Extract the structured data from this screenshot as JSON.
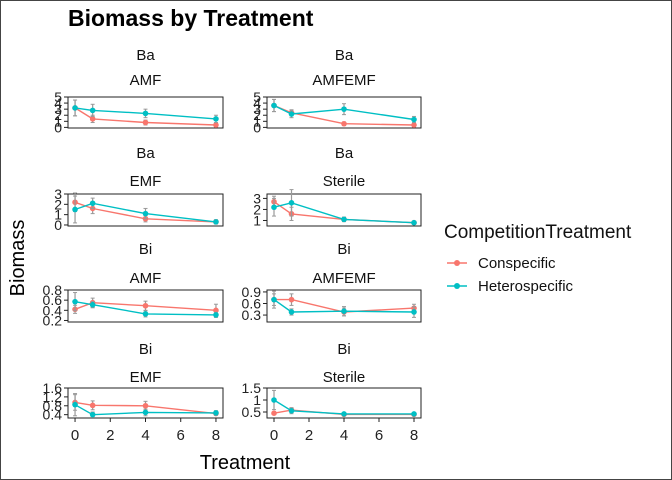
{
  "chart_data": {
    "type": "line",
    "title": "Biomass by Treatment",
    "xlabel": "Treatment",
    "ylabel": "Biomass",
    "x_ticks": [
      0,
      2,
      4,
      6,
      8
    ],
    "xlim": [
      -0.4,
      8.4
    ],
    "legend": {
      "title": "CompetitionTreatment",
      "placement": "right",
      "entries": [
        "Conspecific",
        "Heterospecific"
      ]
    },
    "colors": {
      "Conspecific": "#F8766D",
      "Heterospecific": "#00BFC4",
      "errorbar": "#999999"
    },
    "panels": [
      {
        "strip_top": "Ba",
        "strip_bottom": "AMF",
        "ylim": [
          -0.1,
          5.0
        ],
        "y_ticks": [
          0,
          1,
          2,
          3,
          4,
          5
        ],
        "series": [
          {
            "name": "Conspecific",
            "x": [
              0,
              1,
              4,
              8
            ],
            "y": [
              3.2,
              1.4,
              0.8,
              0.4
            ],
            "err": [
              1.3,
              0.6,
              0.4,
              0.3
            ]
          },
          {
            "name": "Heterospecific",
            "x": [
              0,
              1,
              4,
              8
            ],
            "y": [
              3.2,
              2.8,
              2.3,
              1.4
            ],
            "err": [
              1.3,
              1.0,
              0.7,
              0.6
            ]
          }
        ]
      },
      {
        "strip_top": "Ba",
        "strip_bottom": "AMFEMF",
        "ylim": [
          -0.1,
          5.0
        ],
        "y_ticks": [
          0,
          1,
          2,
          3,
          4,
          5
        ],
        "series": [
          {
            "name": "Conspecific",
            "x": [
              0,
              1,
              4,
              8
            ],
            "y": [
              3.6,
              2.4,
              0.6,
              0.4
            ],
            "err": [
              1.0,
              0.5,
              0.3,
              0.3
            ]
          },
          {
            "name": "Heterospecific",
            "x": [
              0,
              1,
              4,
              8
            ],
            "y": [
              3.6,
              2.2,
              3.0,
              1.3
            ],
            "err": [
              1.0,
              0.6,
              0.9,
              0.5
            ]
          }
        ]
      },
      {
        "strip_top": "Ba",
        "strip_bottom": "EMF",
        "ylim": [
          -0.1,
          3.0
        ],
        "y_ticks": [
          0,
          1,
          2,
          3
        ],
        "series": [
          {
            "name": "Conspecific",
            "x": [
              0,
              1,
              4,
              8
            ],
            "y": [
              2.2,
              1.6,
              0.6,
              0.3
            ],
            "err": [
              0.9,
              0.5,
              0.3,
              0.2
            ]
          },
          {
            "name": "Heterospecific",
            "x": [
              0,
              1,
              4,
              8
            ],
            "y": [
              1.5,
              2.1,
              1.1,
              0.3
            ],
            "err": [
              1.3,
              0.5,
              0.5,
              0.2
            ]
          }
        ]
      },
      {
        "strip_top": "Ba",
        "strip_bottom": "Sterile",
        "ylim": [
          0.5,
          3.4
        ],
        "y_ticks": [
          1,
          2,
          3
        ],
        "series": [
          {
            "name": "Conspecific",
            "x": [
              0,
              1,
              4,
              8
            ],
            "y": [
              2.7,
              1.6,
              1.1,
              0.8
            ],
            "err": [
              0.5,
              0.6,
              0.2,
              0.1
            ]
          },
          {
            "name": "Heterospecific",
            "x": [
              0,
              1,
              4,
              8
            ],
            "y": [
              2.2,
              2.6,
              1.1,
              0.8
            ],
            "err": [
              0.8,
              1.2,
              0.2,
              0.1
            ]
          }
        ]
      },
      {
        "strip_top": "Bi",
        "strip_bottom": "AMF",
        "ylim": [
          0.17,
          0.8
        ],
        "y_ticks": [
          0.2,
          0.4,
          0.6,
          0.8
        ],
        "series": [
          {
            "name": "Conspecific",
            "x": [
              0,
              1,
              4,
              8
            ],
            "y": [
              0.42,
              0.55,
              0.49,
              0.4
            ],
            "err": [
              0.08,
              0.09,
              0.09,
              0.12
            ]
          },
          {
            "name": "Heterospecific",
            "x": [
              0,
              1,
              4,
              8
            ],
            "y": [
              0.57,
              0.51,
              0.33,
              0.31
            ],
            "err": [
              0.18,
              0.06,
              0.06,
              0.05
            ]
          }
        ]
      },
      {
        "strip_top": "Bi",
        "strip_bottom": "AMFEMF",
        "ylim": [
          0.12,
          0.95
        ],
        "y_ticks": [
          0.3,
          0.6,
          0.9
        ],
        "series": [
          {
            "name": "Conspecific",
            "x": [
              0,
              1,
              4,
              8
            ],
            "y": [
              0.7,
              0.7,
              0.38,
              0.48
            ],
            "err": [
              0.15,
              0.15,
              0.1,
              0.1
            ]
          },
          {
            "name": "Heterospecific",
            "x": [
              0,
              1,
              4,
              8
            ],
            "y": [
              0.7,
              0.38,
              0.4,
              0.38
            ],
            "err": [
              0.22,
              0.08,
              0.12,
              0.14
            ]
          }
        ]
      },
      {
        "strip_top": "Bi",
        "strip_bottom": "EMF",
        "ylim": [
          0.25,
          1.6
        ],
        "y_ticks": [
          0.4,
          0.8,
          1.2,
          1.6
        ],
        "series": [
          {
            "name": "Conspecific",
            "x": [
              0,
              1,
              4,
              8
            ],
            "y": [
              0.95,
              0.82,
              0.8,
              0.45
            ],
            "err": [
              0.35,
              0.2,
              0.2,
              0.08
            ]
          },
          {
            "name": "Heterospecific",
            "x": [
              0,
              1,
              4,
              8
            ],
            "y": [
              0.85,
              0.4,
              0.5,
              0.48
            ],
            "err": [
              0.5,
              0.12,
              0.15,
              0.1
            ]
          }
        ]
      },
      {
        "strip_top": "Bi",
        "strip_bottom": "Sterile",
        "ylim": [
          0.25,
          1.5
        ],
        "y_ticks": [
          0.5,
          1.0,
          1.5
        ],
        "series": [
          {
            "name": "Conspecific",
            "x": [
              0,
              1,
              4,
              8
            ],
            "y": [
              0.45,
              0.58,
              0.4,
              0.4
            ],
            "err": [
              0.05,
              0.1,
              0.05,
              0.05
            ]
          },
          {
            "name": "Heterospecific",
            "x": [
              0,
              1,
              4,
              8
            ],
            "y": [
              1.0,
              0.55,
              0.42,
              0.42
            ],
            "err": [
              0.4,
              0.12,
              0.05,
              0.05
            ]
          }
        ]
      }
    ]
  }
}
